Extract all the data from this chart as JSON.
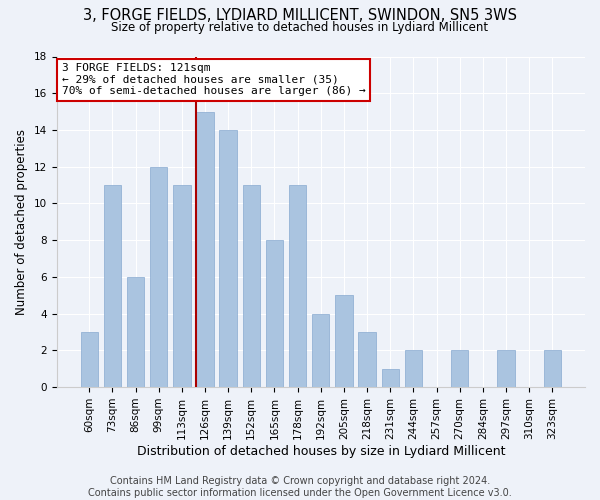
{
  "title": "3, FORGE FIELDS, LYDIARD MILLICENT, SWINDON, SN5 3WS",
  "subtitle": "Size of property relative to detached houses in Lydiard Millicent",
  "xlabel": "Distribution of detached houses by size in Lydiard Millicent",
  "ylabel": "Number of detached properties",
  "categories": [
    "60sqm",
    "73sqm",
    "86sqm",
    "99sqm",
    "113sqm",
    "126sqm",
    "139sqm",
    "152sqm",
    "165sqm",
    "178sqm",
    "192sqm",
    "205sqm",
    "218sqm",
    "231sqm",
    "244sqm",
    "257sqm",
    "270sqm",
    "284sqm",
    "297sqm",
    "310sqm",
    "323sqm"
  ],
  "values": [
    3,
    11,
    6,
    12,
    11,
    15,
    14,
    11,
    8,
    11,
    4,
    5,
    3,
    1,
    2,
    0,
    2,
    0,
    2,
    0,
    2
  ],
  "bar_color": "#aac4e0",
  "highlight_index": 5,
  "highlight_line_color": "#aa0000",
  "annotation_line1": "3 FORGE FIELDS: 121sqm",
  "annotation_line2": "← 29% of detached houses are smaller (35)",
  "annotation_line3": "70% of semi-detached houses are larger (86) →",
  "annotation_box_color": "#ffffff",
  "annotation_box_edge": "#cc0000",
  "ylim": [
    0,
    18
  ],
  "yticks": [
    0,
    2,
    4,
    6,
    8,
    10,
    12,
    14,
    16,
    18
  ],
  "footer_line1": "Contains HM Land Registry data © Crown copyright and database right 2024.",
  "footer_line2": "Contains public sector information licensed under the Open Government Licence v3.0.",
  "title_fontsize": 10.5,
  "subtitle_fontsize": 8.5,
  "xlabel_fontsize": 9,
  "ylabel_fontsize": 8.5,
  "tick_fontsize": 7.5,
  "footer_fontsize": 7,
  "background_color": "#eef2f9"
}
